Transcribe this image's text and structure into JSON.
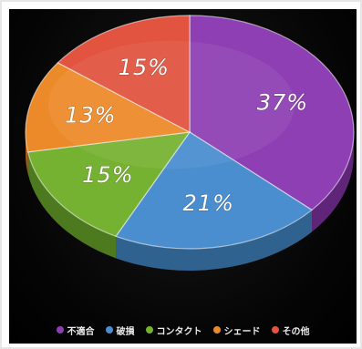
{
  "chart_data": {
    "type": "pie",
    "title": "",
    "categories": [
      "不適合",
      "破損",
      "コンタクト",
      "シェード",
      "その他"
    ],
    "values": [
      37,
      21,
      15,
      13,
      15
    ],
    "labels": [
      "37%",
      "21%",
      "15%",
      "13%",
      "15%"
    ],
    "colors": [
      "#8e3fb3",
      "#4b8ed0",
      "#76b232",
      "#ec8a2a",
      "#e2543f"
    ],
    "side_colors": [
      "#5f2579",
      "#2f628f",
      "#4e7a1f",
      "#a85b17",
      "#9e3527"
    ],
    "legend_position": "bottom",
    "style": "3d-tilted"
  }
}
